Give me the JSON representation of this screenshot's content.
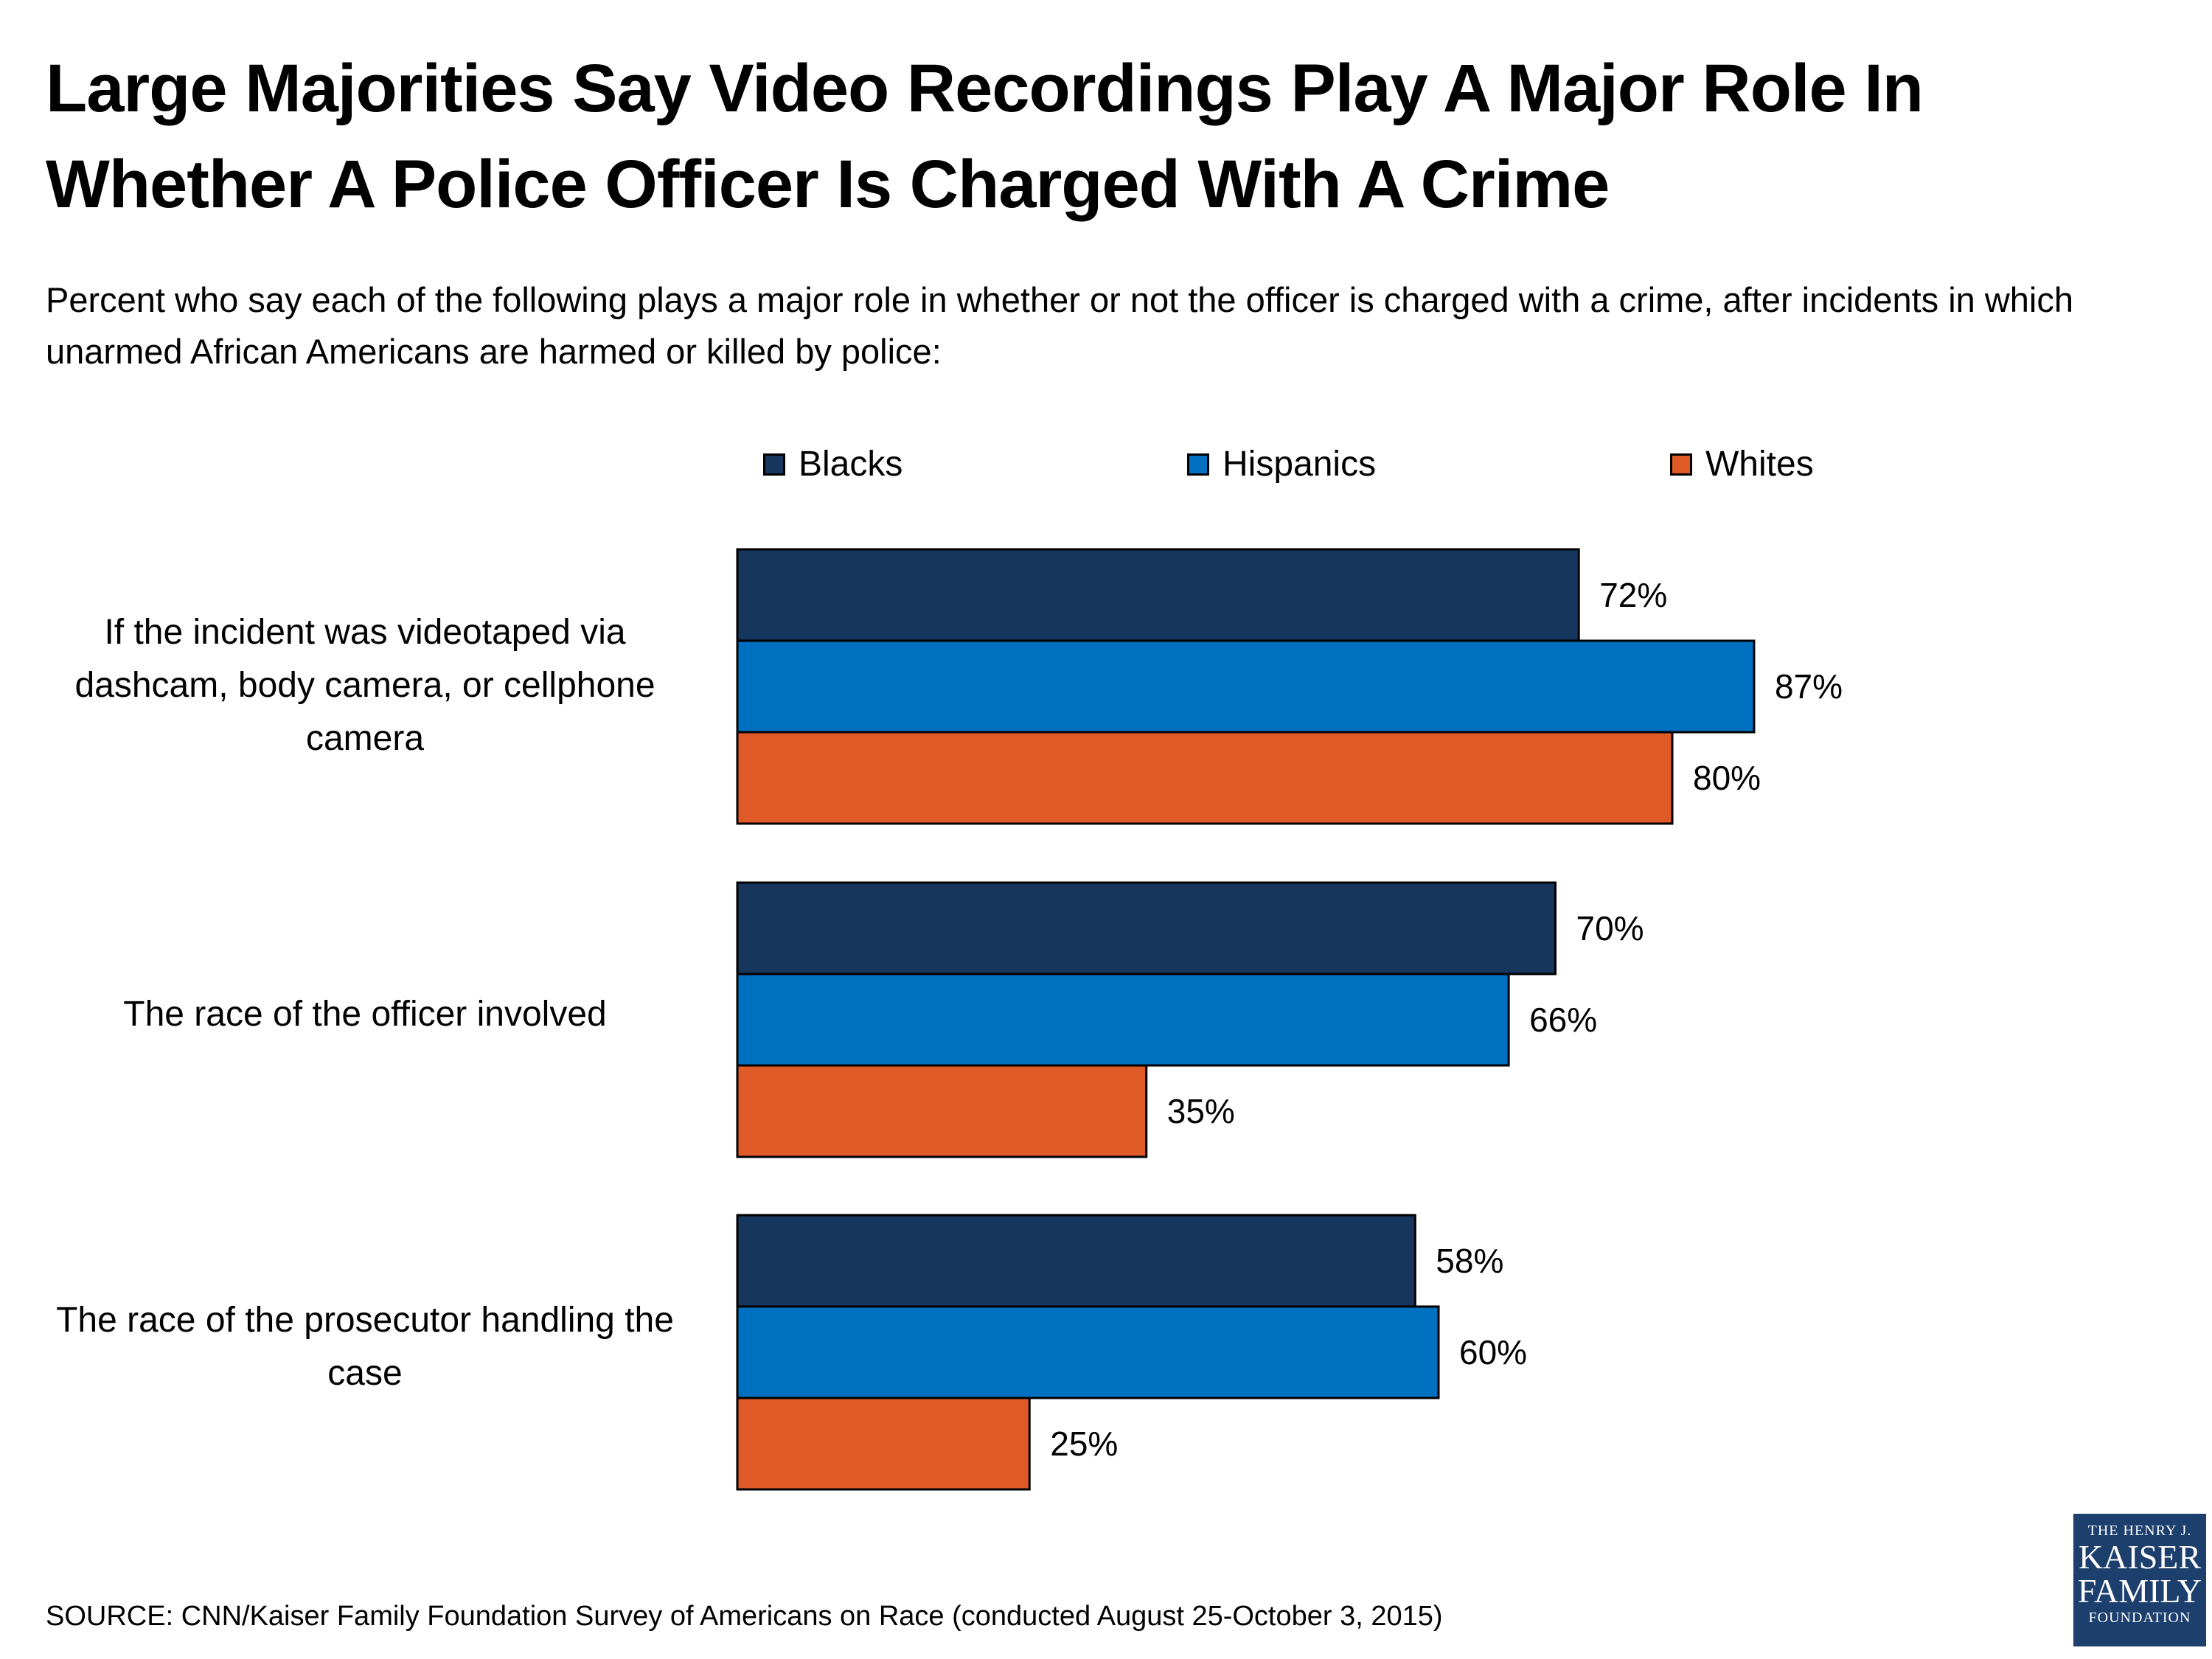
{
  "chart_data": {
    "type": "bar",
    "orientation": "horizontal",
    "title": "Large Majorities Say Video Recordings Play A Major Role In Whether A Police Officer Is Charged With A Crime",
    "subtitle": "Percent who say each of the following plays a major role in whether or not the officer is charged with a crime, after incidents in which unarmed African Americans are harmed or killed by police:",
    "categories": [
      "If the incident was videotaped via dashcam, body camera, or cellphone camera",
      "The race of the officer involved",
      "The race of the prosecutor handling the case"
    ],
    "series": [
      {
        "name": "Blacks",
        "color": "#17365d",
        "values": [
          72,
          70,
          58
        ],
        "labels": [
          "72%",
          "70%",
          "58%"
        ]
      },
      {
        "name": "Hispanics",
        "color": "#0070c0",
        "values": [
          87,
          66,
          60
        ],
        "labels": [
          "87%",
          "66%",
          "60%"
        ]
      },
      {
        "name": "Whites",
        "color": "#e05a28",
        "values": [
          80,
          35,
          25
        ],
        "labels": [
          "80%",
          "35%",
          "25%"
        ]
      }
    ],
    "xlim": [
      0,
      100
    ],
    "grid": false,
    "legend": "top",
    "source": "SOURCE: CNN/Kaiser Family Foundation Survey of Americans on Race (conducted August 25-October 3, 2015)"
  },
  "logo": {
    "line1": "THE HENRY J.",
    "line2": "KAISER",
    "line3": "FAMILY",
    "line4": "FOUNDATION"
  }
}
